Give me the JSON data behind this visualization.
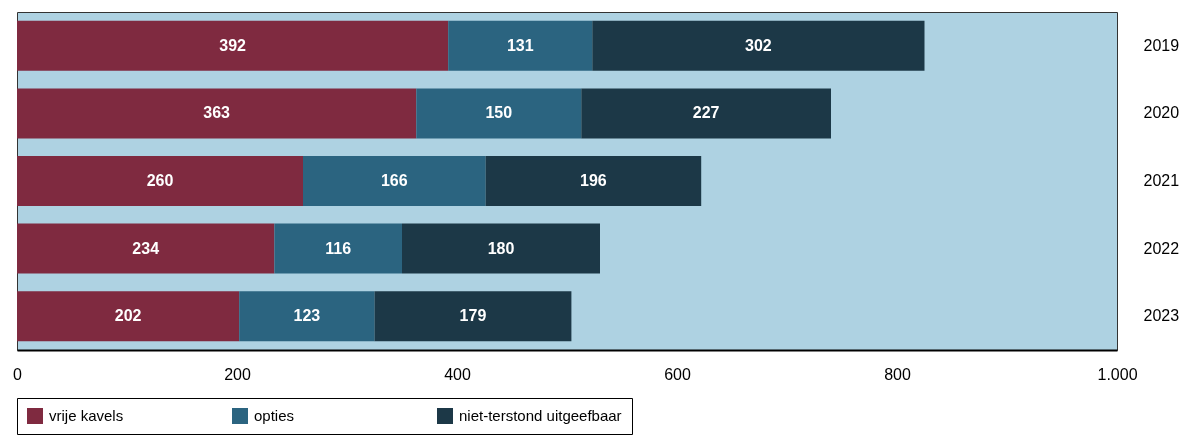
{
  "chart_data": {
    "type": "bar",
    "orientation": "horizontal",
    "stacked": true,
    "categories": [
      "2019",
      "2020",
      "2021",
      "2022",
      "2023"
    ],
    "series": [
      {
        "name": "vrije kavels",
        "color": "#7f2a40",
        "values": [
          392,
          363,
          260,
          234,
          202
        ]
      },
      {
        "name": "opties",
        "color": "#2b6480",
        "values": [
          131,
          150,
          166,
          116,
          123
        ]
      },
      {
        "name": "niet-terstond uitgeefbaar",
        "color": "#1c3847",
        "values": [
          302,
          227,
          196,
          180,
          179
        ]
      }
    ],
    "xlim": [
      0,
      1000
    ],
    "xticks": [
      0,
      200,
      400,
      600,
      800,
      {
        "value": 1000,
        "label": "1.000"
      }
    ],
    "data_labels": true,
    "legend": "bottom"
  }
}
